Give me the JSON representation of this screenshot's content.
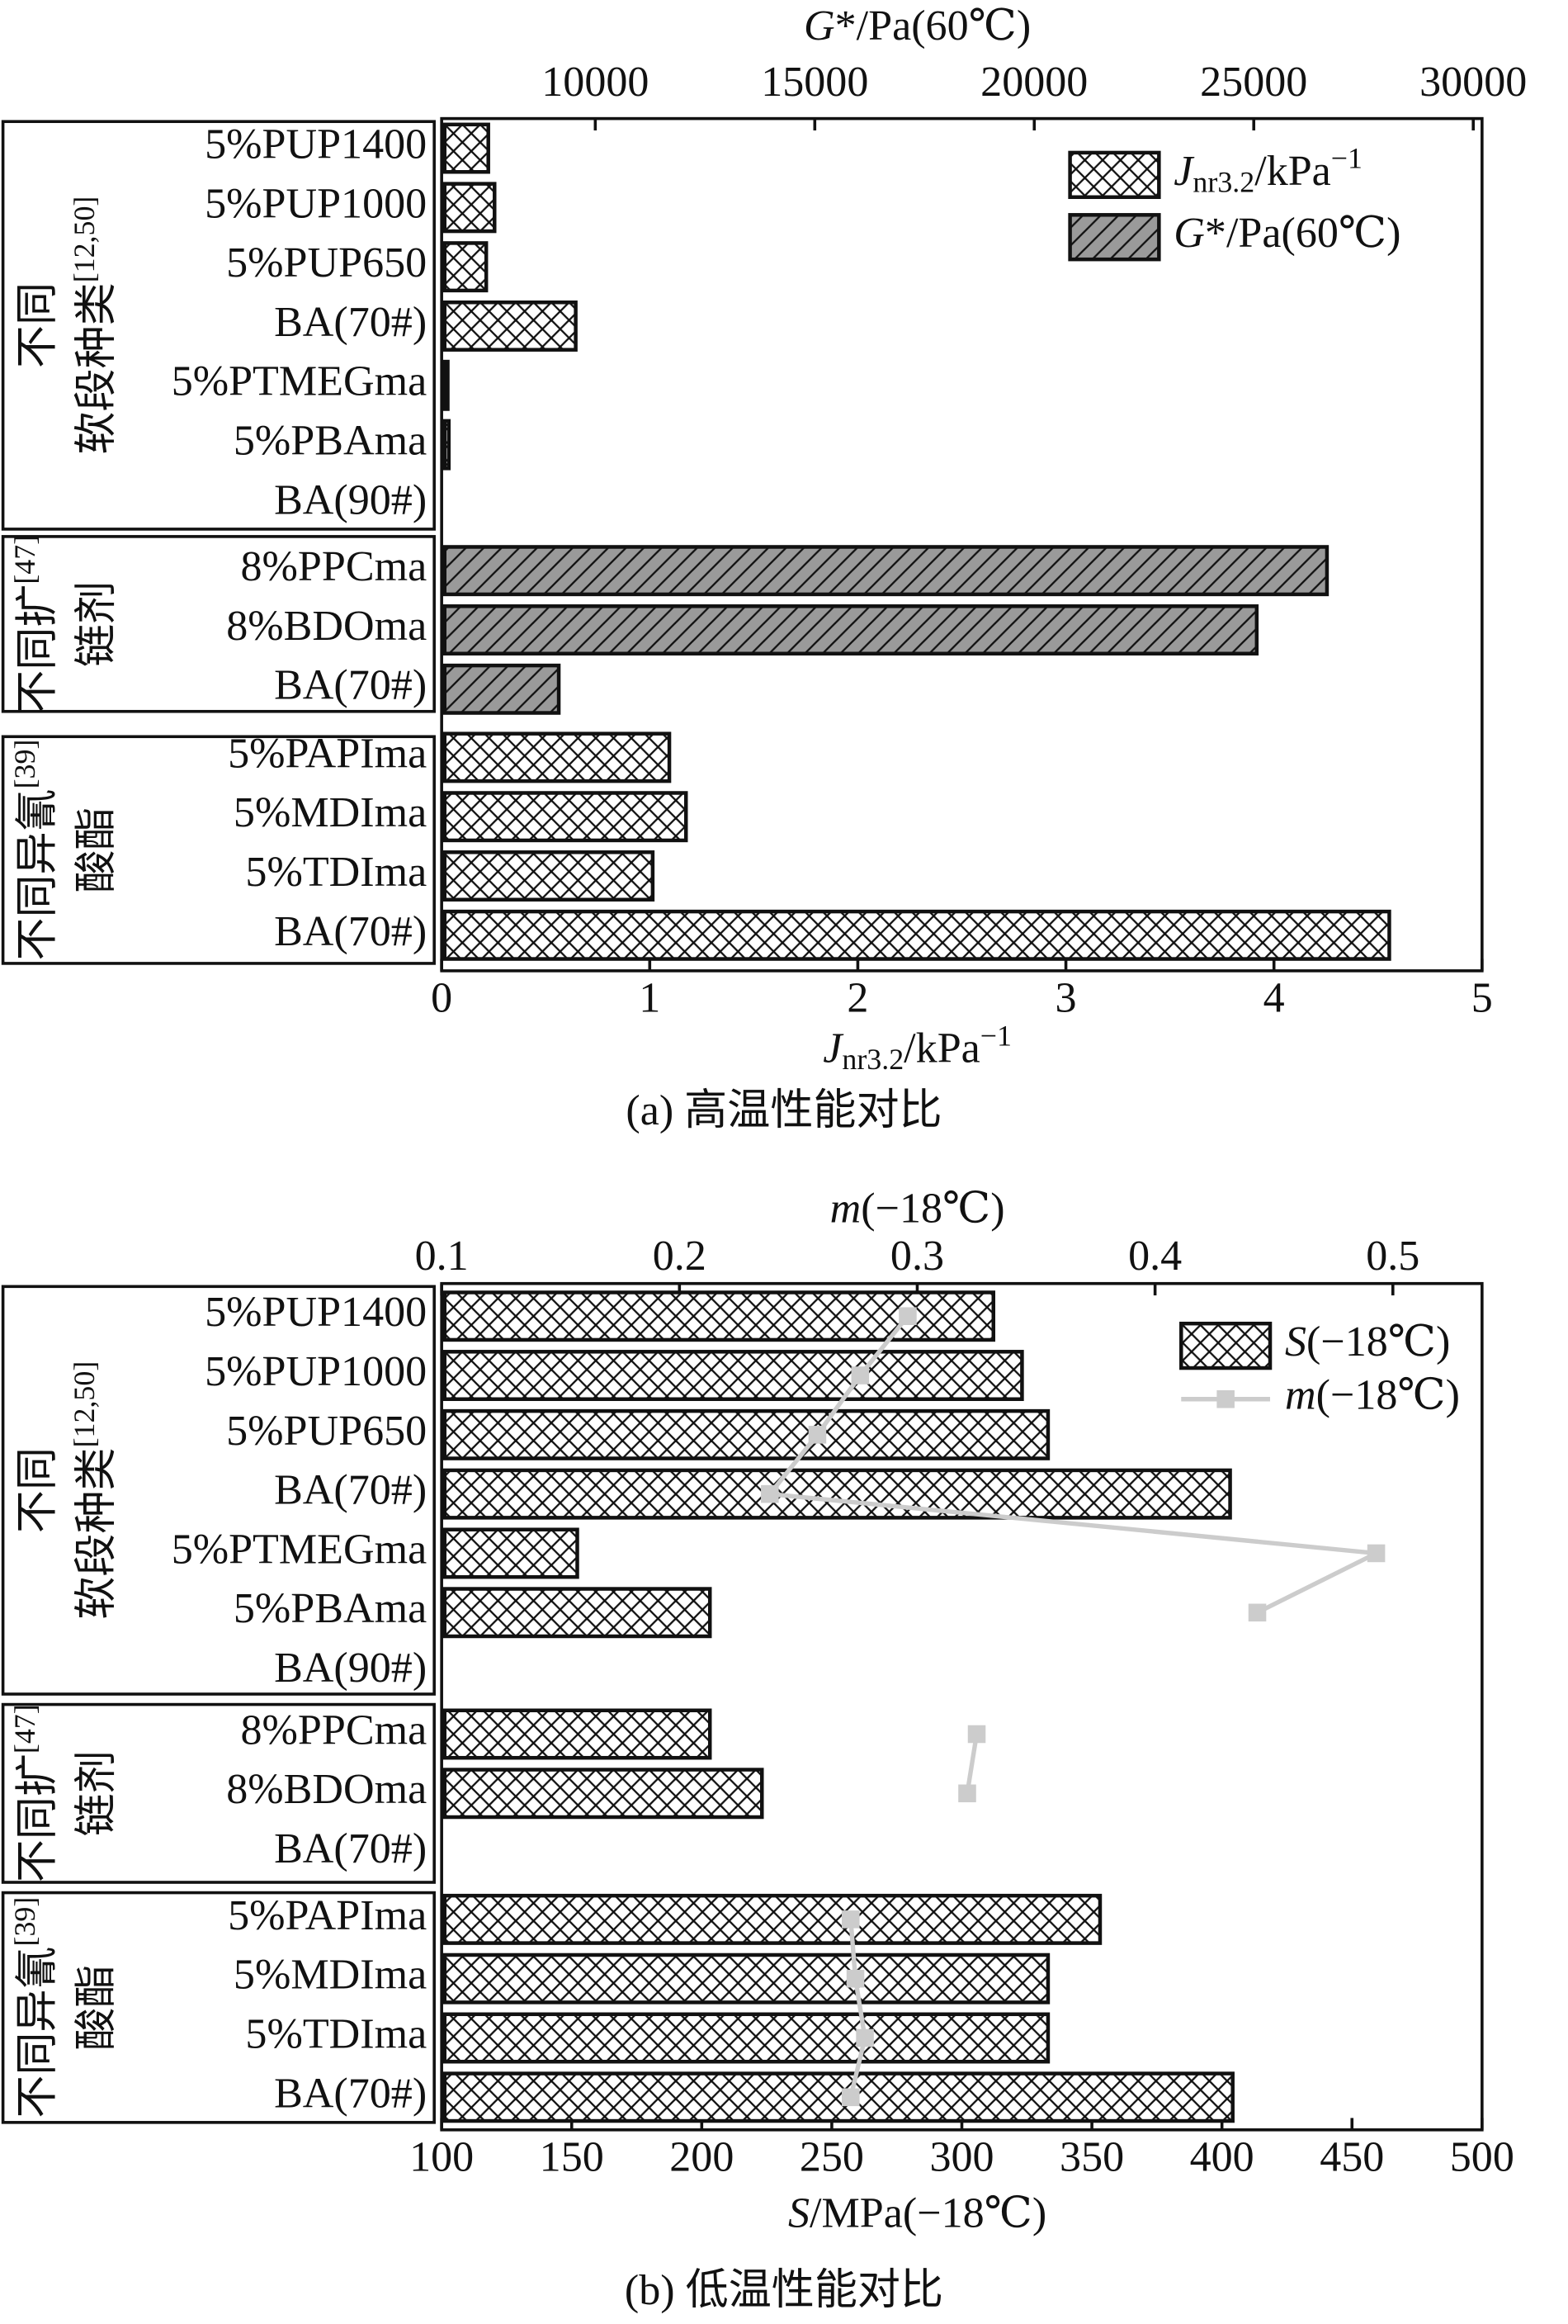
{
  "chart_data": [
    {
      "type": "bar",
      "orientation": "horizontal",
      "caption": "(a) 高温性能对比",
      "groups": [
        {
          "label": [
            [
              {
                "text": "不同"
              }
            ],
            [
              {
                "text": "软段种类"
              },
              {
                "text": "[12,50]",
                "style": "sup"
              }
            ]
          ],
          "categories": [
            "5%PUP1400",
            "5%PUP1000",
            "5%PUP650",
            "BA(70#)",
            "5%PTMEGma",
            "5%PBAma",
            "BA(90#)"
          ]
        },
        {
          "label": [
            [
              {
                "text": "不同扩"
              },
              {
                "text": "[47]",
                "style": "sup"
              }
            ],
            [
              {
                "text": "链剂"
              }
            ]
          ],
          "categories": [
            "8%PPCma",
            "8%BDOma",
            "BA(70#)"
          ]
        },
        {
          "label": [
            [
              {
                "text": "不同异氰"
              },
              {
                "text": "[39]",
                "style": "sup"
              }
            ],
            [
              {
                "text": "酸酯"
              }
            ]
          ],
          "categories": [
            "5%PAPIma",
            "5%MDIma",
            "5%TDIma",
            "BA(70#)"
          ]
        }
      ],
      "xlabel": [
        {
          "text": "J",
          "style": "italic"
        },
        {
          "text": "nr3.2",
          "style": "sub"
        },
        {
          "text": "/kPa"
        },
        {
          "text": "−1",
          "style": "sup"
        }
      ],
      "x2label": [
        {
          "text": "G",
          "style": "italic"
        },
        {
          "text": "*/Pa(60℃)"
        }
      ],
      "xlim": [
        0,
        5
      ],
      "xticks": [
        0,
        1,
        2,
        3,
        4,
        5
      ],
      "x2lim": [
        6500,
        30200
      ],
      "x2ticks": [
        10000,
        15000,
        20000,
        25000,
        30000
      ],
      "legend": "upper right",
      "series": [
        {
          "name": [
            {
              "text": "J",
              "style": "italic"
            },
            {
              "text": "nr3.2",
              "style": "sub"
            },
            {
              "text": "/kPa"
            },
            {
              "text": "−1",
              "style": "sup"
            }
          ],
          "type": "bar",
          "pattern": "crosshatch",
          "color": "#ffffff",
          "values": [
            [
              0.21,
              0.24,
              0.2,
              0.63,
              0.015,
              0.02,
              null
            ],
            [
              null,
              null,
              null
            ],
            [
              1.08,
              1.16,
              1.0,
              4.54
            ]
          ]
        },
        {
          "name": [
            {
              "text": "G",
              "style": "italic"
            },
            {
              "text": "*/Pa(60℃)"
            }
          ],
          "type": "bar",
          "axis": "x2",
          "pattern": "diagonal",
          "color": "#9a9a9a",
          "values": [
            [
              null,
              null,
              null,
              null,
              null,
              null,
              null
            ],
            [
              26600,
              25000,
              9100
            ],
            [
              null,
              null,
              null,
              null
            ]
          ]
        }
      ]
    },
    {
      "type": "bar",
      "orientation": "horizontal",
      "caption": "(b) 低温性能对比",
      "groups": [
        {
          "label": [
            [
              {
                "text": "不同"
              }
            ],
            [
              {
                "text": "软段种类"
              },
              {
                "text": "[12,50]",
                "style": "sup"
              }
            ]
          ],
          "categories": [
            "5%PUP1400",
            "5%PUP1000",
            "5%PUP650",
            "BA(70#)",
            "5%PTMEGma",
            "5%PBAma",
            "BA(90#)"
          ]
        },
        {
          "label": [
            [
              {
                "text": "不同扩"
              },
              {
                "text": "[47]",
                "style": "sup"
              }
            ],
            [
              {
                "text": "链剂"
              }
            ]
          ],
          "categories": [
            "8%PPCma",
            "8%BDOma",
            "BA(70#)"
          ]
        },
        {
          "label": [
            [
              {
                "text": "不同异氰"
              },
              {
                "text": "[39]",
                "style": "sup"
              }
            ],
            [
              {
                "text": "酸酯"
              }
            ]
          ],
          "categories": [
            "5%PAPIma",
            "5%MDIma",
            "5%TDIma",
            "BA(70#)"
          ]
        }
      ],
      "xlabel": [
        {
          "text": "S",
          "style": "italic"
        },
        {
          "text": "/MPa(−18℃)"
        }
      ],
      "x2label": [
        {
          "text": "m",
          "style": "italic"
        },
        {
          "text": "(−18℃)"
        }
      ],
      "xlim": [
        100,
        500
      ],
      "xticks": [
        100,
        150,
        200,
        250,
        300,
        350,
        400,
        450,
        500
      ],
      "x2lim": [
        0.1,
        0.5375
      ],
      "x2ticks": [
        0.1,
        0.2,
        0.3,
        0.4,
        0.5
      ],
      "legend": "upper right",
      "series": [
        {
          "name": [
            {
              "text": "S",
              "style": "italic"
            },
            {
              "text": "(−18℃)"
            }
          ],
          "type": "bar",
          "pattern": "crosshatch",
          "color": "#ffffff",
          "values": [
            [
              311,
              322,
              332,
              402,
              151,
              202,
              null
            ],
            [
              202,
              222,
              null
            ],
            [
              352,
              332,
              332,
              403
            ]
          ]
        },
        {
          "name": [
            {
              "text": "m",
              "style": "italic"
            },
            {
              "text": "(−18℃)"
            }
          ],
          "type": "line",
          "axis": "x2",
          "color": "#cccccc",
          "values": [
            [
              0.296,
              0.276,
              0.258,
              0.238,
              0.493,
              0.443,
              null
            ],
            [
              0.325,
              0.321,
              null
            ],
            [
              0.272,
              0.274,
              0.278,
              0.272
            ]
          ]
        }
      ]
    }
  ]
}
